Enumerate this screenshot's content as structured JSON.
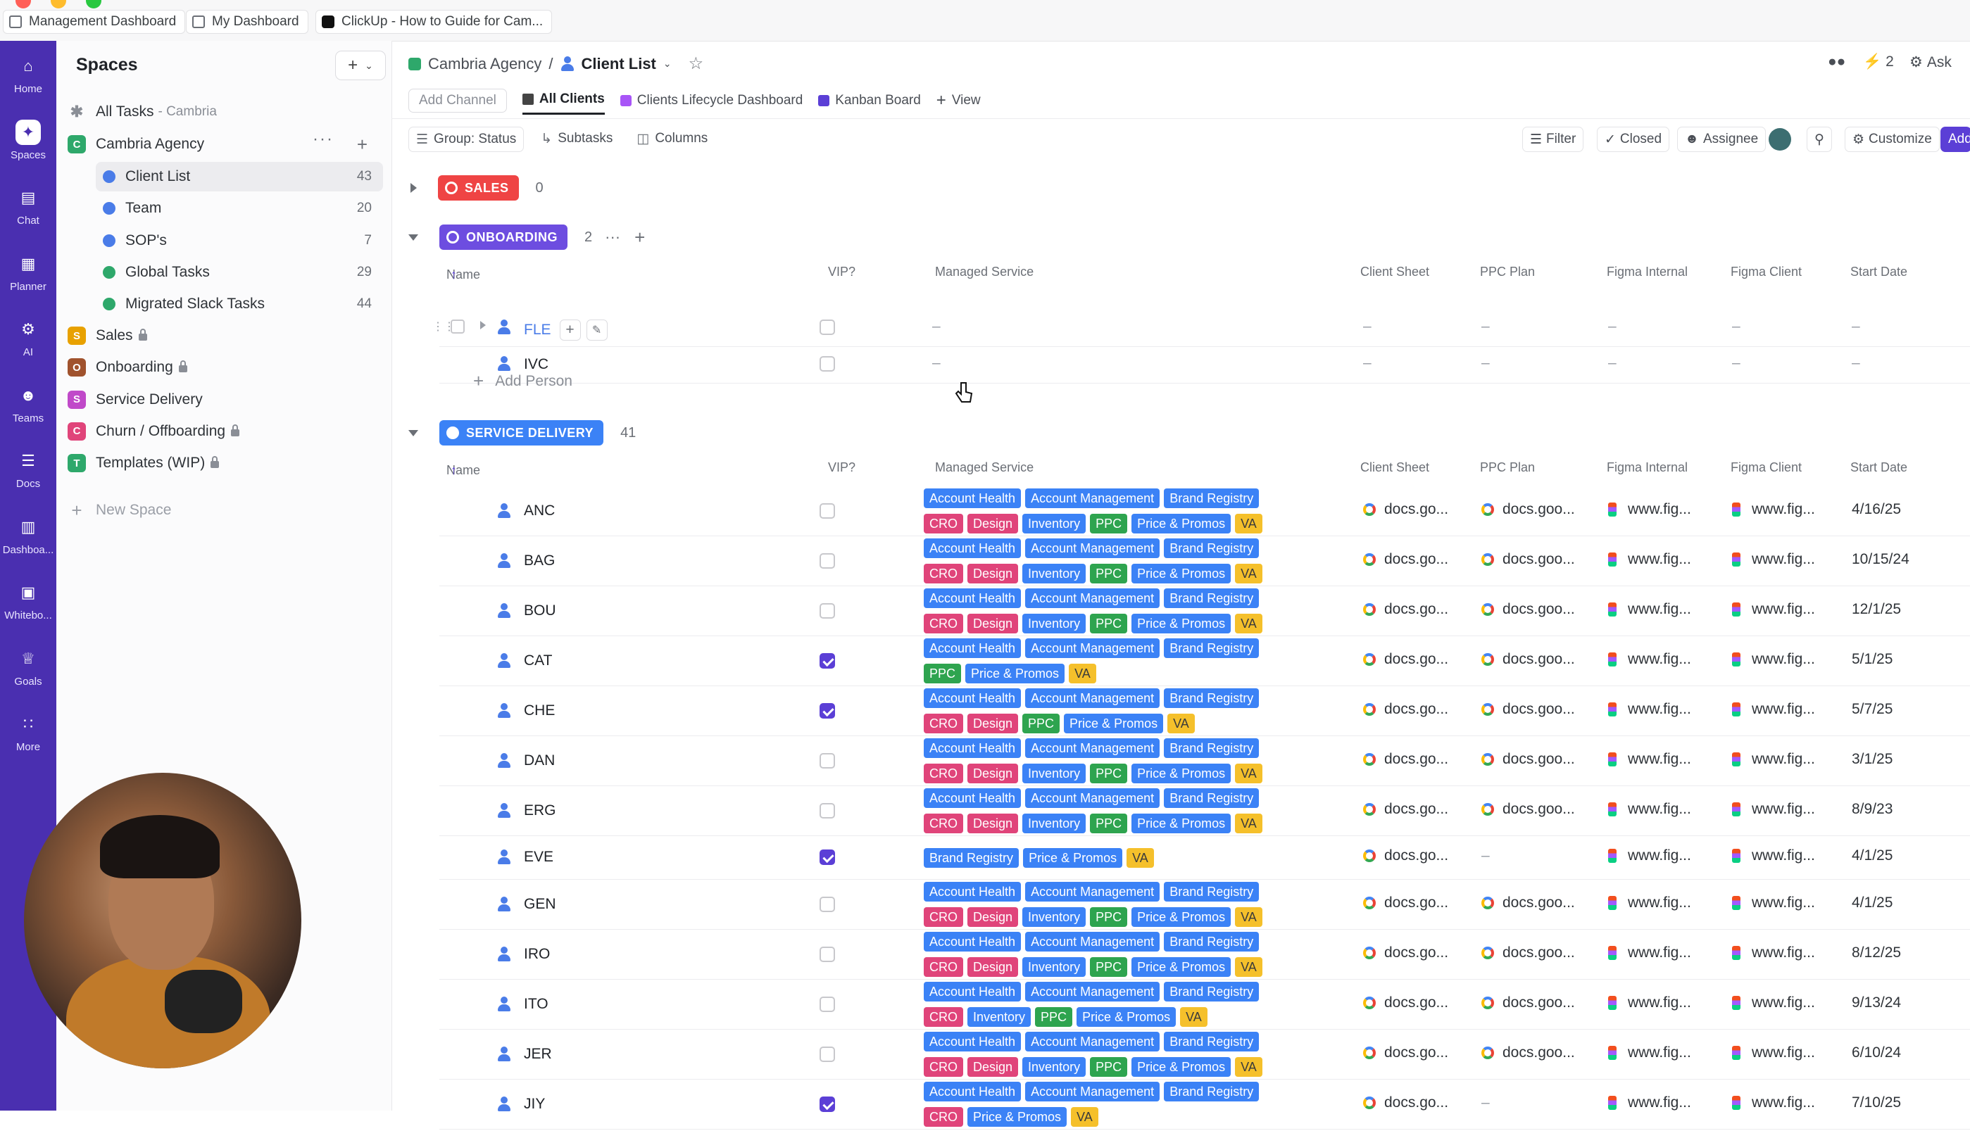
{
  "browser": {
    "bookmarks": [
      "Management Dashboard",
      "My Dashboard",
      "ClickUp - How to Guide for Cam..."
    ]
  },
  "rail": {
    "items": [
      {
        "label": "Home",
        "icon": "home-icon"
      },
      {
        "label": "Spaces",
        "icon": "spaces-icon",
        "active": true
      },
      {
        "label": "Chat",
        "icon": "chat-icon"
      },
      {
        "label": "Planner",
        "icon": "planner-icon"
      },
      {
        "label": "AI",
        "icon": "ai-icon"
      },
      {
        "label": "Teams",
        "icon": "teams-icon"
      },
      {
        "label": "Docs",
        "icon": "docs-icon"
      },
      {
        "label": "Dashboa...",
        "icon": "dashboards-icon"
      },
      {
        "label": "Whitebo...",
        "icon": "whiteboards-icon"
      },
      {
        "label": "Goals",
        "icon": "goals-icon"
      },
      {
        "label": "More",
        "icon": "more-icon"
      }
    ]
  },
  "sidebar": {
    "title": "Spaces",
    "all_tasks": "All Tasks",
    "all_tasks_sub": "- Cambria",
    "workspace": "Cambria Agency",
    "lists": [
      {
        "label": "Client List",
        "count": "43"
      },
      {
        "label": "Team",
        "count": "20"
      },
      {
        "label": "SOP's",
        "count": "7"
      },
      {
        "label": "Global Tasks",
        "count": "29"
      },
      {
        "label": "Migrated Slack Tasks",
        "count": "44"
      }
    ],
    "spaces": [
      {
        "letter": "S",
        "label": "Sales",
        "locked": true
      },
      {
        "letter": "O",
        "label": "Onboarding",
        "locked": true
      },
      {
        "letter": "S",
        "label": "Service Delivery",
        "locked": false
      },
      {
        "letter": "C",
        "label": "Churn / Offboarding",
        "locked": true
      },
      {
        "letter": "T",
        "label": "Templates (WIP)",
        "locked": true
      }
    ],
    "new_space": "New Space"
  },
  "header": {
    "breadcrumb_space": "Cambria Agency",
    "breadcrumb_list": "Client List",
    "right": {
      "count": "2",
      "ask": "Ask"
    },
    "tabs": [
      "Add Channel",
      "All Clients",
      "Clients Lifecycle Dashboard",
      "Kanban Board",
      "View"
    ],
    "toolbar": [
      "Group: Status",
      "Subtasks",
      "Columns"
    ],
    "right_tools": {
      "filter": "Filter",
      "closed": "Closed",
      "assignee": "Assignee",
      "customize": "Customize",
      "add": "Add"
    }
  },
  "columns": {
    "name": "Name",
    "vip": "VIP?",
    "managed": "Managed Service",
    "sheet": "Client Sheet",
    "ppc": "PPC Plan",
    "fig_int": "Figma Internal",
    "fig_client": "Figma Client",
    "start": "Start Date"
  },
  "groups": {
    "sales": {
      "label": "SALES",
      "count": "0"
    },
    "onboarding": {
      "label": "ONBOARDING",
      "count": "2"
    },
    "service": {
      "label": "SERVICE DELIVERY",
      "count": "41"
    }
  },
  "onboarding_rows": [
    {
      "name": "FLE"
    },
    {
      "name": "IVC"
    }
  ],
  "add_person": "Add Person",
  "empty": "–",
  "cells": {
    "doc_short": "docs.go...",
    "doc_long": "docs.goo...",
    "figma": "www.fig..."
  },
  "tag_colors": {
    "Account Health": "#3b82f6",
    "Account Management": "#3b82f6",
    "Brand Registry": "#3b82f6",
    "CRO": "#e0447a",
    "Design": "#e0447a",
    "Inventory": "#3b82f6",
    "PPC": "#2ea44f",
    "Price & Promos": "#3b82f6",
    "VA": "#f5c02b"
  },
  "clients": [
    {
      "name": "ANC",
      "vip": false,
      "tags": [
        [
          "Account Health",
          "Account Management",
          "Brand Registry"
        ],
        [
          "CRO",
          "Design",
          "Inventory",
          "PPC",
          "Price & Promos",
          "VA"
        ]
      ],
      "ppc": true,
      "start": "4/16/25"
    },
    {
      "name": "BAG",
      "vip": false,
      "tags": [
        [
          "Account Health",
          "Account Management",
          "Brand Registry"
        ],
        [
          "CRO",
          "Design",
          "Inventory",
          "PPC",
          "Price & Promos",
          "VA"
        ]
      ],
      "ppc": true,
      "start": "10/15/24"
    },
    {
      "name": "BOU",
      "vip": false,
      "tags": [
        [
          "Account Health",
          "Account Management",
          "Brand Registry"
        ],
        [
          "CRO",
          "Design",
          "Inventory",
          "PPC",
          "Price & Promos",
          "VA"
        ]
      ],
      "ppc": true,
      "start": "12/1/25"
    },
    {
      "name": "CAT",
      "vip": true,
      "tags": [
        [
          "Account Health",
          "Account Management",
          "Brand Registry"
        ],
        [
          "PPC",
          "Price & Promos",
          "VA"
        ]
      ],
      "ppc": true,
      "start": "5/1/25"
    },
    {
      "name": "CHE",
      "vip": true,
      "tags": [
        [
          "Account Health",
          "Account Management",
          "Brand Registry"
        ],
        [
          "CRO",
          "Design",
          "PPC",
          "Price & Promos",
          "VA"
        ]
      ],
      "ppc": true,
      "start": "5/7/25"
    },
    {
      "name": "DAN",
      "vip": false,
      "tags": [
        [
          "Account Health",
          "Account Management",
          "Brand Registry"
        ],
        [
          "CRO",
          "Design",
          "Inventory",
          "PPC",
          "Price & Promos",
          "VA"
        ]
      ],
      "ppc": true,
      "start": "3/1/25"
    },
    {
      "name": "ERG",
      "vip": false,
      "tags": [
        [
          "Account Health",
          "Account Management",
          "Brand Registry"
        ],
        [
          "CRO",
          "Design",
          "Inventory",
          "PPC",
          "Price & Promos",
          "VA"
        ]
      ],
      "ppc": true,
      "start": "8/9/23"
    },
    {
      "name": "EVE",
      "vip": true,
      "tags": [
        [
          "Brand Registry",
          "Price & Promos",
          "VA"
        ]
      ],
      "ppc": false,
      "start": "4/1/25"
    },
    {
      "name": "GEN",
      "vip": false,
      "tags": [
        [
          "Account Health",
          "Account Management",
          "Brand Registry"
        ],
        [
          "CRO",
          "Design",
          "Inventory",
          "PPC",
          "Price & Promos",
          "VA"
        ]
      ],
      "ppc": true,
      "start": "4/1/25"
    },
    {
      "name": "IRO",
      "vip": false,
      "tags": [
        [
          "Account Health",
          "Account Management",
          "Brand Registry"
        ],
        [
          "CRO",
          "Design",
          "Inventory",
          "PPC",
          "Price & Promos",
          "VA"
        ]
      ],
      "ppc": true,
      "start": "8/12/25"
    },
    {
      "name": "ITO",
      "vip": false,
      "tags": [
        [
          "Account Health",
          "Account Management",
          "Brand Registry"
        ],
        [
          "CRO",
          "Inventory",
          "PPC",
          "Price & Promos",
          "VA"
        ]
      ],
      "ppc": true,
      "start": "9/13/24"
    },
    {
      "name": "JER",
      "vip": false,
      "tags": [
        [
          "Account Health",
          "Account Management",
          "Brand Registry"
        ],
        [
          "CRO",
          "Design",
          "Inventory",
          "PPC",
          "Price & Promos",
          "VA"
        ]
      ],
      "ppc": true,
      "start": "6/10/24"
    },
    {
      "name": "JIY",
      "vip": true,
      "tags": [
        [
          "Account Health",
          "Account Management",
          "Brand Registry"
        ],
        [
          "CRO",
          "Price & Promos",
          "VA"
        ]
      ],
      "ppc": false,
      "start": "7/10/25"
    }
  ]
}
